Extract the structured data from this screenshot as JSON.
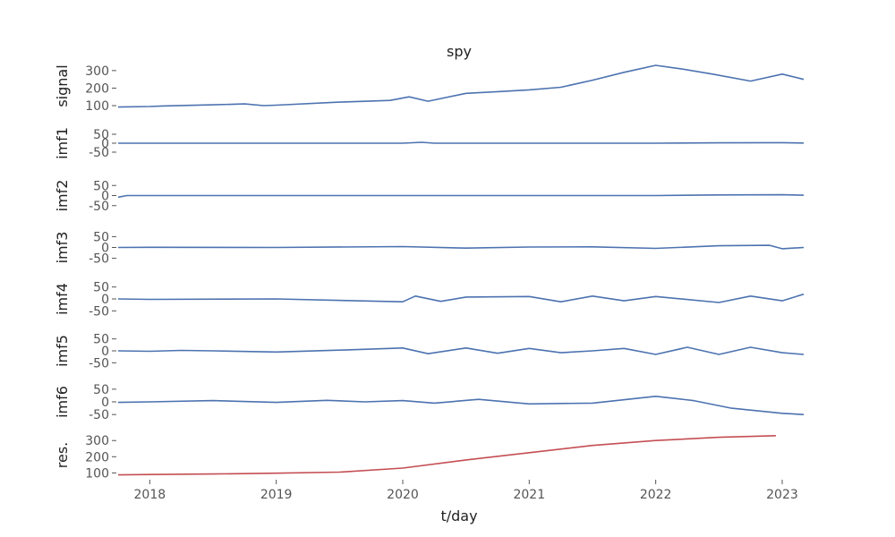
{
  "chart_data": {
    "type": "line",
    "title": "spy",
    "xlabel": "t/day",
    "xlim": [
      2017.75,
      2023.17
    ],
    "x_ticks": [
      2018,
      2019,
      2020,
      2021,
      2022,
      2023
    ],
    "grid": false,
    "colors": {
      "imf_line": "#4c72b0",
      "residual_line": "#c44e52",
      "text": "#555555"
    },
    "panels": [
      {
        "name": "signal",
        "ylim": [
          90,
          335
        ],
        "y_ticks": [
          100,
          200,
          300
        ],
        "color": "#4c72b0",
        "x": [
          2017.75,
          2018.0,
          2018.1,
          2018.5,
          2018.75,
          2018.9,
          2019.0,
          2019.5,
          2019.9,
          2020.05,
          2020.2,
          2020.5,
          2020.75,
          2021.0,
          2021.25,
          2021.5,
          2021.75,
          2022.0,
          2022.2,
          2022.45,
          2022.75,
          2023.0,
          2023.17
        ],
        "values": [
          92,
          95,
          98,
          105,
          110,
          100,
          103,
          120,
          130,
          150,
          125,
          170,
          180,
          190,
          205,
          245,
          290,
          330,
          310,
          280,
          240,
          280,
          250
        ]
      },
      {
        "name": "imf1",
        "ylim": [
          -60,
          60
        ],
        "y_ticks": [
          50,
          0,
          -50
        ],
        "color": "#4c72b0",
        "x": [
          2017.75,
          2018.0,
          2019.0,
          2020.0,
          2020.15,
          2020.25,
          2021.0,
          2022.0,
          2022.5,
          2023.0,
          2023.17
        ],
        "values": [
          0,
          0,
          0,
          0,
          5,
          0,
          0,
          0,
          2,
          3,
          1
        ]
      },
      {
        "name": "imf2",
        "ylim": [
          -60,
          60
        ],
        "y_ticks": [
          50,
          0,
          -50
        ],
        "color": "#4c72b0",
        "x": [
          2017.75,
          2017.82,
          2018.0,
          2019.0,
          2020.0,
          2021.0,
          2022.0,
          2022.5,
          2023.0,
          2023.17
        ],
        "values": [
          -8,
          0,
          0,
          0,
          0,
          0,
          0,
          3,
          4,
          2
        ]
      },
      {
        "name": "imf3",
        "ylim": [
          -60,
          60
        ],
        "y_ticks": [
          50,
          0,
          -50
        ],
        "color": "#4c72b0",
        "x": [
          2017.75,
          2018.0,
          2019.0,
          2020.0,
          2020.5,
          2021.0,
          2021.5,
          2022.0,
          2022.5,
          2022.9,
          2023.0,
          2023.17
        ],
        "values": [
          0,
          1,
          0,
          4,
          -3,
          2,
          3,
          -4,
          8,
          10,
          -6,
          0
        ]
      },
      {
        "name": "imf4",
        "ylim": [
          -60,
          60
        ],
        "y_ticks": [
          50,
          0,
          -50
        ],
        "color": "#4c72b0",
        "x": [
          2017.75,
          2018.0,
          2019.0,
          2020.0,
          2020.1,
          2020.3,
          2020.5,
          2021.0,
          2021.25,
          2021.5,
          2021.75,
          2022.0,
          2022.5,
          2022.75,
          2023.0,
          2023.17
        ],
        "values": [
          0,
          -2,
          0,
          -12,
          12,
          -10,
          8,
          10,
          -12,
          12,
          -8,
          10,
          -15,
          12,
          -8,
          20
        ]
      },
      {
        "name": "imf5",
        "ylim": [
          -60,
          60
        ],
        "y_ticks": [
          50,
          0,
          -50
        ],
        "color": "#4c72b0",
        "x": [
          2017.75,
          2018.0,
          2018.25,
          2018.5,
          2019.0,
          2019.5,
          2020.0,
          2020.2,
          2020.5,
          2020.75,
          2021.0,
          2021.25,
          2021.5,
          2021.75,
          2022.0,
          2022.25,
          2022.5,
          2022.75,
          2023.0,
          2023.17
        ],
        "values": [
          0,
          -2,
          2,
          0,
          -5,
          3,
          12,
          -12,
          12,
          -10,
          10,
          -8,
          0,
          10,
          -15,
          15,
          -15,
          15,
          -8,
          -15
        ]
      },
      {
        "name": "imf6",
        "ylim": [
          -60,
          60
        ],
        "y_ticks": [
          50,
          0,
          -50
        ],
        "color": "#4c72b0",
        "x": [
          2017.75,
          2018.0,
          2018.5,
          2019.0,
          2019.4,
          2019.7,
          2020.0,
          2020.25,
          2020.6,
          2021.0,
          2021.5,
          2022.0,
          2022.3,
          2022.6,
          2023.0,
          2023.17
        ],
        "values": [
          -2,
          0,
          5,
          -2,
          6,
          0,
          5,
          -5,
          10,
          -8,
          -5,
          22,
          5,
          -25,
          -45,
          -50
        ]
      },
      {
        "name": "res.",
        "ylim": [
          80,
          340
        ],
        "y_ticks": [
          100,
          200,
          300
        ],
        "color": "#c44e52",
        "x": [
          2017.75,
          2018.0,
          2018.5,
          2019.0,
          2019.5,
          2020.0,
          2020.5,
          2021.0,
          2021.5,
          2022.0,
          2022.5,
          2022.95
        ],
        "values": [
          88,
          90,
          93,
          98,
          105,
          130,
          180,
          225,
          270,
          300,
          320,
          330
        ]
      }
    ]
  }
}
